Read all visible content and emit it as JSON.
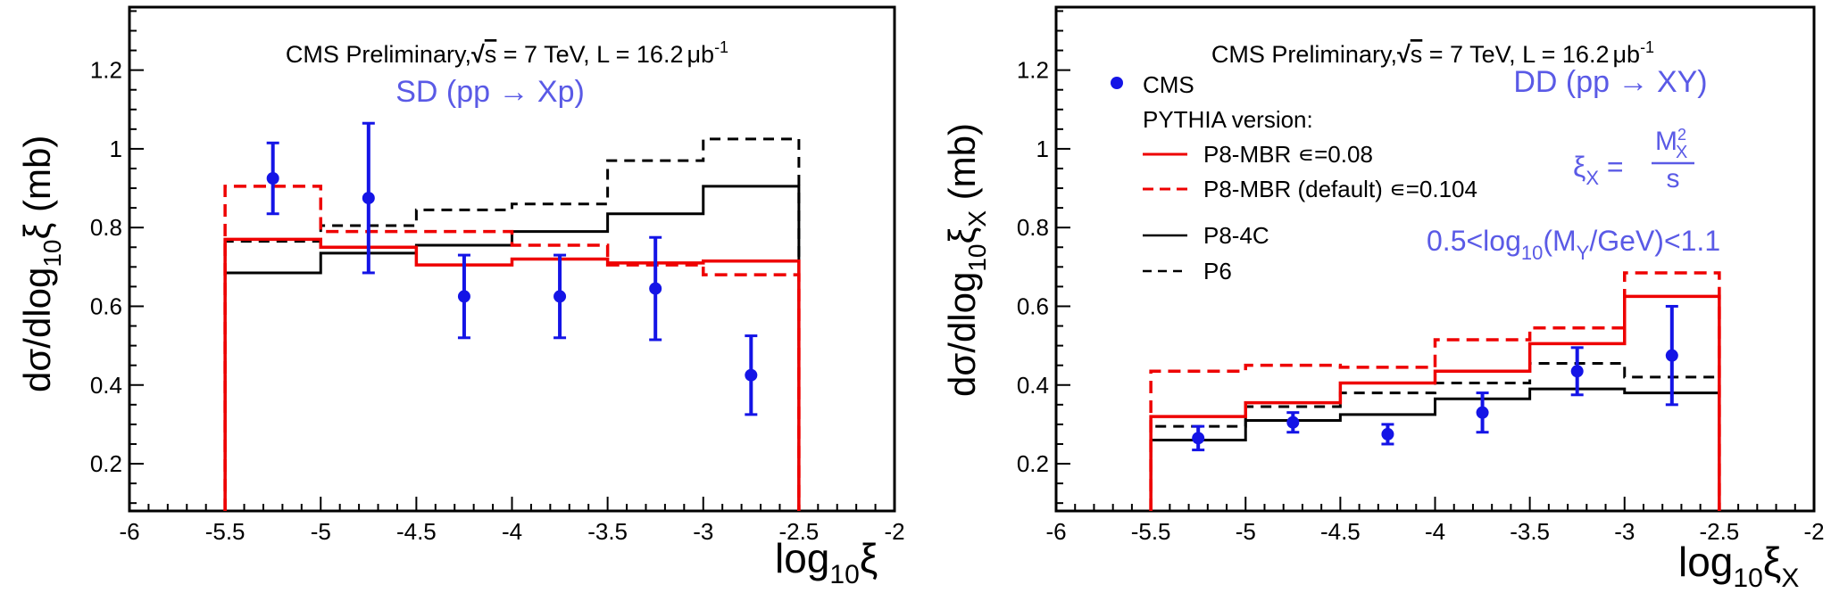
{
  "colors": {
    "cms": "#1414e6",
    "mbr": "#ee0000",
    "p84c": "#000000",
    "p6": "#000000",
    "label_blue": "#5a5ae6",
    "frame": "#000000"
  },
  "chart_data": [
    {
      "type": "histogram",
      "panel": "left",
      "header": {
        "prefix": "CMS Preliminary,",
        "sqrt": "s",
        "energy": " = 7 TeV, L = 16.2",
        "mu": "μ",
        "b": "b",
        "exp": "-1"
      },
      "process": {
        "text": "SD (pp → Xp)"
      },
      "xlabel": {
        "main": "log",
        "sub": "10",
        "tail": "ξ"
      },
      "ylabel": {
        "main": "dσ/dlog",
        "sub": "10",
        "tail": "ξ",
        "tail_sub": "",
        "unit": " (mb)"
      },
      "xlim": [
        -6,
        -2
      ],
      "ylim": [
        0.08,
        1.36
      ],
      "xticks": [
        -6,
        -5.5,
        -5,
        -4.5,
        -4,
        -3.5,
        -3,
        -2.5,
        -2
      ],
      "xtick_labels": [
        "-6",
        "-5.5",
        "-5",
        "-4.5",
        "-4",
        "-3.5",
        "-3",
        "-2.5",
        "-2"
      ],
      "yticks": [
        0.2,
        0.4,
        0.6,
        0.8,
        1,
        1.2
      ],
      "ytick_labels": [
        "0.2",
        "0.4",
        "0.6",
        "0.8",
        "1",
        "1.2"
      ],
      "bin_edges": [
        -5.5,
        -5,
        -4.5,
        -4,
        -3.5,
        -3,
        -2.5
      ],
      "series": [
        {
          "name": "P8-MBR ε=0.08",
          "key": "mbr",
          "style": "solid",
          "values": [
            0.77,
            0.75,
            0.705,
            0.72,
            0.71,
            0.715
          ]
        },
        {
          "name": "P8-MBR (default) ε=0.104",
          "key": "mbr",
          "style": "dashed",
          "values": [
            0.905,
            0.79,
            0.79,
            0.755,
            0.705,
            0.68
          ]
        },
        {
          "name": "P8-4C",
          "key": "p84c",
          "style": "solid",
          "values": [
            0.685,
            0.735,
            0.755,
            0.79,
            0.835,
            0.905
          ]
        },
        {
          "name": "P6",
          "key": "p6",
          "style": "dashed",
          "values": [
            0.765,
            0.805,
            0.845,
            0.86,
            0.97,
            1.025
          ]
        }
      ],
      "data": {
        "name": "CMS",
        "x": [
          -5.25,
          -4.75,
          -4.25,
          -3.75,
          -3.25,
          -2.75
        ],
        "y": [
          0.925,
          0.875,
          0.625,
          0.625,
          0.645,
          0.425
        ],
        "err": [
          0.09,
          0.19,
          0.105,
          0.105,
          0.13,
          0.1
        ]
      }
    },
    {
      "type": "histogram",
      "panel": "right",
      "header": {
        "prefix": "CMS Preliminary,",
        "sqrt": "s",
        "energy": " = 7 TeV, L = 16.2",
        "mu": "μ",
        "b": "b",
        "exp": "-1"
      },
      "process": {
        "text": "DD (pp → XY)"
      },
      "formula": {
        "lhs": "ξ",
        "lhs_sub": "X",
        "eq": " = ",
        "num": "M",
        "num_sub": "X",
        "num_sup": "2",
        "den": "s"
      },
      "mass_cut": {
        "pre": "0.5<log",
        "sub1": "10",
        "mid": "(M",
        "sub2": "Y",
        "post": "/GeV)<1.1"
      },
      "legend": {
        "data_label": "CMS",
        "header": "PYTHIA version:",
        "items": [
          {
            "label": "P8-MBR ∊=0.08",
            "key": "mbr",
            "style": "solid"
          },
          {
            "label": "P8-MBR (default) ∊=0.104",
            "key": "mbr",
            "style": "dashed"
          },
          {
            "label": "P8-4C",
            "key": "p84c",
            "style": "solid"
          },
          {
            "label": "P6",
            "key": "p6",
            "style": "dashed"
          }
        ]
      },
      "xlabel": {
        "main": "log",
        "sub": "10",
        "tail": "ξ",
        "tail_sub": "X"
      },
      "ylabel": {
        "main": "dσ/dlog",
        "sub": "10",
        "tail": "ξ",
        "tail_sub": "X",
        "unit": " (mb)"
      },
      "xlim": [
        -6,
        -2
      ],
      "ylim": [
        0.08,
        1.36
      ],
      "xticks": [
        -6,
        -5.5,
        -5,
        -4.5,
        -4,
        -3.5,
        -3,
        -2.5,
        -2
      ],
      "xtick_labels": [
        "-6",
        "-5.5",
        "-5",
        "-4.5",
        "-4",
        "-3.5",
        "-3",
        "-2.5",
        "-2"
      ],
      "yticks": [
        0.2,
        0.4,
        0.6,
        0.8,
        1,
        1.2
      ],
      "ytick_labels": [
        "0.2",
        "0.4",
        "0.6",
        "0.8",
        "1",
        "1.2"
      ],
      "bin_edges": [
        -5.5,
        -5,
        -4.5,
        -4,
        -3.5,
        -3,
        -2.5
      ],
      "series": [
        {
          "name": "P8-MBR ε=0.08",
          "key": "mbr",
          "style": "solid",
          "values": [
            0.32,
            0.355,
            0.405,
            0.435,
            0.505,
            0.625
          ]
        },
        {
          "name": "P8-MBR (default) ε=0.104",
          "key": "mbr",
          "style": "dashed",
          "values": [
            0.435,
            0.45,
            0.445,
            0.515,
            0.545,
            0.685
          ]
        },
        {
          "name": "P8-4C",
          "key": "p84c",
          "style": "solid",
          "values": [
            0.26,
            0.31,
            0.325,
            0.365,
            0.39,
            0.38
          ]
        },
        {
          "name": "P6",
          "key": "p6",
          "style": "dashed",
          "values": [
            0.295,
            0.345,
            0.38,
            0.405,
            0.455,
            0.42
          ]
        }
      ],
      "data": {
        "name": "CMS",
        "x": [
          -5.25,
          -4.75,
          -4.25,
          -3.75,
          -3.25,
          -2.75
        ],
        "y": [
          0.265,
          0.305,
          0.275,
          0.33,
          0.435,
          0.475
        ],
        "err": [
          0.03,
          0.025,
          0.025,
          0.05,
          0.06,
          0.125
        ]
      }
    }
  ]
}
